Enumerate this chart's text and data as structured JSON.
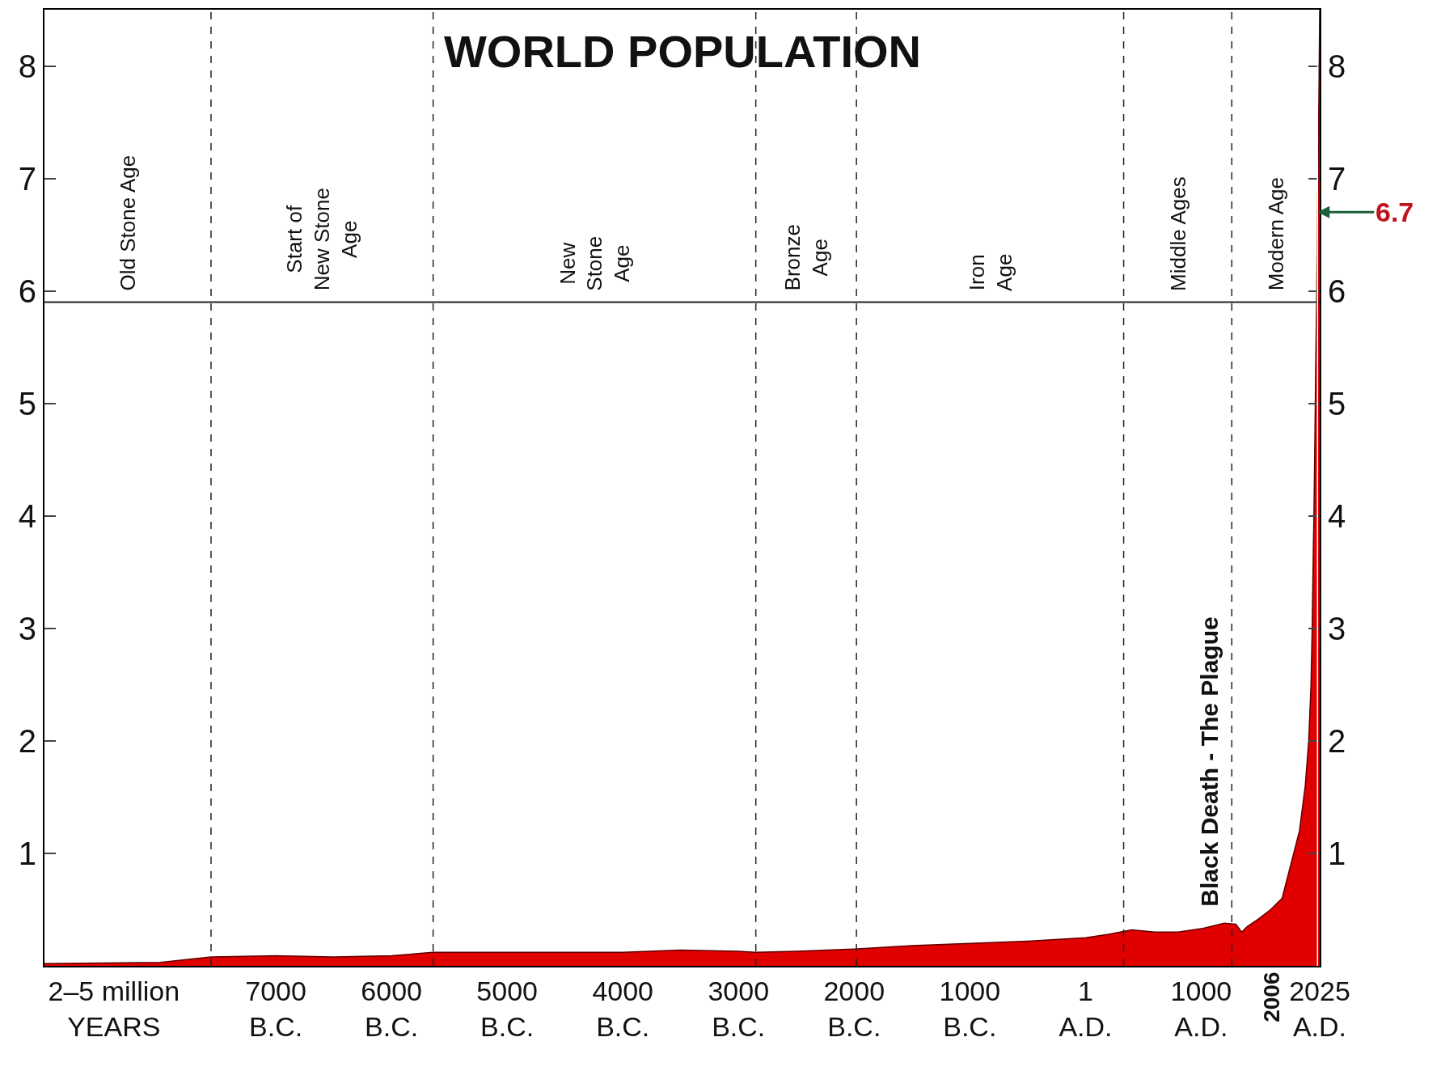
{
  "chart_data": {
    "type": "area",
    "title": "WORLD POPULATION",
    "x": [
      -9000,
      -8000,
      -7560,
      -7000,
      -6500,
      -6000,
      -5640,
      -5000,
      -4500,
      -4000,
      -3500,
      -3000,
      -2850,
      -2500,
      -2000,
      -1500,
      -1000,
      -500,
      1,
      200,
      400,
      600,
      800,
      1000,
      1200,
      1300,
      1350,
      1400,
      1500,
      1600,
      1700,
      1750,
      1800,
      1850,
      1900,
      1930,
      1950,
      1960,
      1970,
      1975,
      1980,
      1987,
      1990,
      1999,
      2006,
      2015,
      2025
    ],
    "series": [
      {
        "color": "#e00000",
        "values": [
          0.02,
          0.03,
          0.08,
          0.09,
          0.08,
          0.09,
          0.12,
          0.12,
          0.12,
          0.12,
          0.14,
          0.13,
          0.12,
          0.13,
          0.15,
          0.18,
          0.2,
          0.22,
          0.25,
          0.28,
          0.32,
          0.3,
          0.3,
          0.33,
          0.38,
          0.37,
          0.3,
          0.35,
          0.42,
          0.5,
          0.6,
          0.8,
          1.0,
          1.2,
          1.6,
          2.0,
          2.5,
          3.0,
          3.7,
          4.0,
          4.4,
          5.0,
          5.3,
          6.0,
          6.7,
          7.4,
          8.5
        ]
      }
    ],
    "xlim": [
      -9000,
      2025
    ],
    "ylim": [
      0,
      8.5
    ],
    "y2lim": [
      0,
      8.5
    ],
    "xticks": [
      {
        "value": -8400,
        "label": "2–5 million\nYEARS"
      },
      {
        "value": -7000,
        "label": "7000\nB.C."
      },
      {
        "value": -6000,
        "label": "6000\nB.C."
      },
      {
        "value": -5000,
        "label": "5000\nB.C."
      },
      {
        "value": -4000,
        "label": "4000\nB.C."
      },
      {
        "value": -3000,
        "label": "3000\nB.C."
      },
      {
        "value": -2000,
        "label": "2000\nB.C."
      },
      {
        "value": -1000,
        "label": "1000\nB.C."
      },
      {
        "value": 1,
        "label": "1\nA.D."
      },
      {
        "value": 1000,
        "label": "1000\nA.D."
      },
      {
        "value": 2025,
        "label": "2025\nA.D."
      }
    ],
    "yticks": [
      1,
      2,
      3,
      4,
      5,
      6,
      7,
      8
    ],
    "y2ticks": [
      1,
      2,
      3,
      4,
      5,
      6,
      7,
      8
    ],
    "ref_lines": [
      {
        "axis": "x",
        "value": -7560,
        "color": "#222222",
        "line_style": "dashed"
      },
      {
        "axis": "x",
        "value": -5640,
        "color": "#222222",
        "line_style": "dashed"
      },
      {
        "axis": "x",
        "value": -2850,
        "color": "#222222",
        "line_style": "dashed"
      },
      {
        "axis": "x",
        "value": -1980,
        "color": "#222222",
        "line_style": "dashed"
      },
      {
        "axis": "x",
        "value": 330,
        "color": "#222222",
        "line_style": "dashed"
      },
      {
        "axis": "x",
        "value": 1265,
        "color": "#222222",
        "line_style": "dashed"
      },
      {
        "axis": "y",
        "value": 5.9,
        "color": "#222222",
        "line_style": "solid"
      },
      {
        "axis": "x",
        "value": 2006,
        "label": "2006",
        "color": "#ffffff",
        "line_style": "solid"
      }
    ],
    "annotations": [
      "Old Stone Age",
      "Start of\nNew Stone\nAge",
      "New\nStone\nAge",
      "Bronze\nAge",
      "Iron\nAge",
      "Middle Ages",
      "Modern Age",
      {
        "text": "Black Death - The Plague",
        "x": 1350,
        "y": 0.3
      },
      {
        "text": "6.7",
        "x": 2006,
        "y": 6.7
      }
    ],
    "tick_labels": true
  }
}
